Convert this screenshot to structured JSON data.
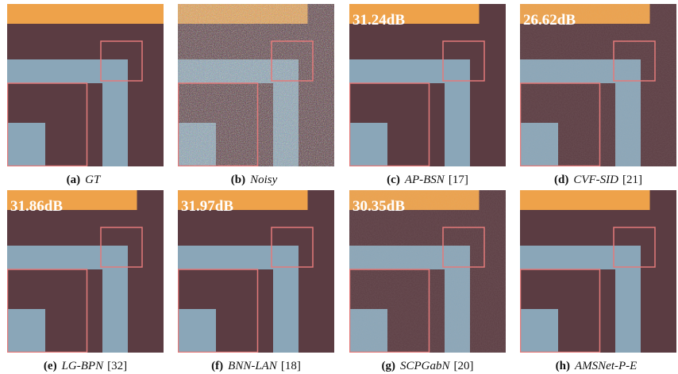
{
  "panels": [
    {
      "label": "(a)",
      "name": "GT"
    },
    {
      "label": "(b)",
      "name": "Noisy"
    },
    {
      "label": "(c)",
      "name": "AP-BSN",
      "ref": "[17]",
      "psnr": "31.24dB"
    },
    {
      "label": "(d)",
      "name": "CVF-SID",
      "ref": "[21]",
      "psnr": "26.62dB"
    },
    {
      "label": "(e)",
      "name": "LG-BPN",
      "ref": "[32]",
      "psnr": "31.86dB"
    },
    {
      "label": "(f)",
      "name": "BNN-LAN",
      "ref": "[18]",
      "psnr": "31.97dB"
    },
    {
      "label": "(g)",
      "name": "SCPGabN",
      "ref": "[20]",
      "psnr": "30.35dB"
    },
    {
      "label": "(h)",
      "name": "AMSNet-P-E"
    }
  ]
}
